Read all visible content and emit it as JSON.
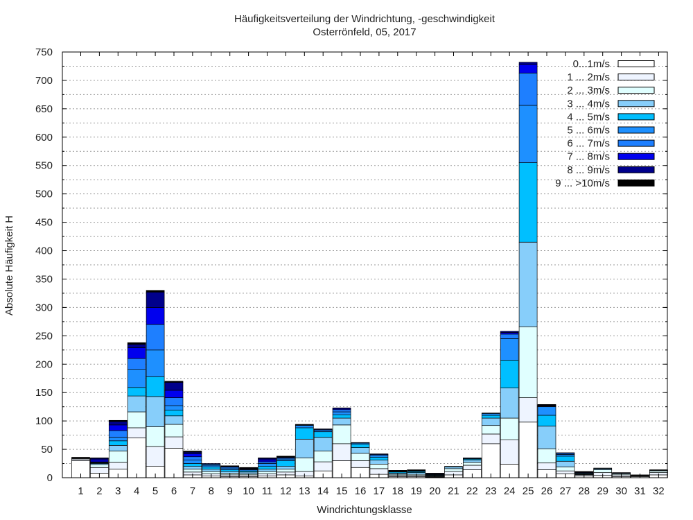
{
  "chart_data": {
    "type": "bar",
    "stacked": true,
    "title": "Häufigkeitsverteilung der Windrichtung, -geschwindigkeit",
    "subtitle": "Osterrönfeld, 05, 2017",
    "xlabel": "Windrichtungsklasse",
    "ylabel": "Absolute Häufigkeit H",
    "ylim": [
      0,
      750
    ],
    "yticks": [
      0,
      50,
      100,
      150,
      200,
      250,
      300,
      350,
      400,
      450,
      500,
      550,
      600,
      650,
      700,
      750
    ],
    "grid": true,
    "legend_position": "top-right",
    "categories": [
      "1",
      "2",
      "3",
      "4",
      "5",
      "6",
      "7",
      "8",
      "9",
      "10",
      "11",
      "12",
      "13",
      "14",
      "15",
      "16",
      "17",
      "18",
      "19",
      "20",
      "21",
      "22",
      "23",
      "24",
      "25",
      "26",
      "27",
      "28",
      "29",
      "30",
      "31",
      "32"
    ],
    "series": [
      {
        "name": "0...1m/s",
        "color": "#ffffff",
        "values": [
          30,
          8,
          15,
          70,
          20,
          52,
          5,
          3,
          2,
          2,
          3,
          5,
          3,
          12,
          30,
          18,
          6,
          2,
          2,
          1,
          5,
          14,
          60,
          24,
          98,
          14,
          7,
          3,
          4,
          2,
          2,
          5
        ]
      },
      {
        "name": "1 ... 2m/s",
        "color": "#eef4ff",
        "values": [
          3,
          10,
          12,
          18,
          35,
          20,
          5,
          4,
          3,
          3,
          4,
          5,
          8,
          16,
          30,
          12,
          10,
          2,
          2,
          1,
          6,
          8,
          17,
          43,
          43,
          12,
          5,
          2,
          5,
          3,
          1,
          4
        ]
      },
      {
        "name": "2 ... 3m/s",
        "color": "#e0ffff",
        "values": [
          1,
          5,
          20,
          28,
          35,
          22,
          5,
          4,
          3,
          2,
          4,
          5,
          24,
          19,
          33,
          13,
          8,
          2,
          2,
          1,
          5,
          5,
          15,
          38,
          125,
          25,
          7,
          1,
          5,
          2,
          1,
          3
        ]
      },
      {
        "name": "3 ... 4m/s",
        "color": "#87cefa",
        "values": [
          0,
          2,
          10,
          28,
          53,
          15,
          5,
          4,
          3,
          3,
          4,
          5,
          33,
          24,
          12,
          10,
          7,
          2,
          3,
          1,
          3,
          4,
          13,
          53,
          149,
          40,
          10,
          1,
          2,
          1,
          0,
          1
        ]
      },
      {
        "name": "4 ... 5m/s",
        "color": "#00bfff",
        "values": [
          0,
          1,
          8,
          15,
          35,
          10,
          5,
          4,
          3,
          2,
          5,
          10,
          20,
          10,
          6,
          6,
          5,
          2,
          2,
          1,
          1,
          2,
          5,
          49,
          140,
          19,
          9,
          1,
          0,
          0,
          0,
          0
        ]
      },
      {
        "name": "5 ... 6m/s",
        "color": "#1e90ff",
        "values": [
          0,
          1,
          6,
          32,
          47,
          8,
          6,
          3,
          3,
          2,
          5,
          3,
          4,
          2,
          5,
          2,
          3,
          1,
          1,
          1,
          0,
          1,
          3,
          38,
          101,
          15,
          3,
          1,
          0,
          0,
          0,
          0
        ]
      },
      {
        "name": "6 ... 7m/s",
        "color": "#1e7fff",
        "values": [
          0,
          1,
          12,
          19,
          45,
          14,
          6,
          2,
          2,
          1,
          3,
          2,
          1,
          2,
          4,
          1,
          2,
          0,
          0,
          0,
          0,
          1,
          1,
          8,
          57,
          1,
          2,
          0,
          0,
          0,
          0,
          0
        ]
      },
      {
        "name": "7 ... 8m/s",
        "color": "#0000ee",
        "values": [
          0,
          3,
          10,
          19,
          30,
          13,
          5,
          1,
          1,
          1,
          3,
          1,
          0,
          1,
          2,
          0,
          1,
          0,
          0,
          0,
          0,
          0,
          0,
          3,
          15,
          1,
          1,
          0,
          0,
          0,
          0,
          0
        ]
      },
      {
        "name": "8 ... 9m/s",
        "color": "#00008b",
        "values": [
          0,
          3,
          6,
          6,
          27,
          14,
          3,
          0,
          0,
          1,
          3,
          1,
          0,
          0,
          1,
          0,
          0,
          0,
          0,
          1,
          0,
          0,
          0,
          2,
          4,
          1,
          0,
          1,
          0,
          1,
          0,
          0
        ]
      },
      {
        "name": "9 ... >10m/s",
        "color": "#000000",
        "values": [
          2,
          1,
          2,
          3,
          3,
          2,
          2,
          0,
          1,
          1,
          1,
          1,
          1,
          0,
          0,
          0,
          0,
          2,
          2,
          1,
          0,
          0,
          0,
          0,
          0,
          1,
          0,
          1,
          1,
          0,
          1,
          1
        ]
      }
    ]
  }
}
